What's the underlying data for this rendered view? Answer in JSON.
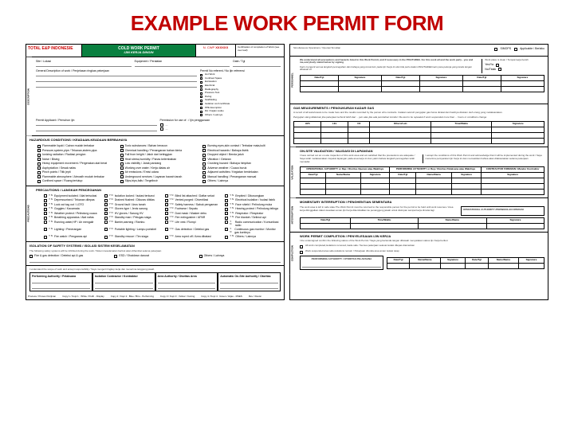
{
  "title": "EXAMPLE WORK PERMIT FORM",
  "colors": {
    "title": "#c00000",
    "green": "#0a8040",
    "logo": "#c00000"
  },
  "left": {
    "logo": "TOTAL E&P INDONESIE",
    "permit_title": "COLD WORK PERMIT",
    "permit_sub": "IJIN KERJA DINGIN",
    "permit_no_lbl": "N. CWP",
    "permit_no": "XXXXXX",
    "cert": "Certification of completion of Work (see over leaf)",
    "desc": {
      "label": "DESCRIPTION",
      "fields": [
        "Site / Lokasi",
        "Equipment / Peralatan",
        "Date / Tgl",
        "General Description of work / Penjelasan ringkas pekerjaan",
        "Permit Applicant / Pemohon ijin"
      ],
      "right_fields": [
        "Permit No referent / No ijin referensi",
        "Drawing / Gambar"
      ],
      "permits": [
        "Hot Work",
        "Confined Space",
        "Excavation",
        "Electrical",
        "Radiography",
        "Pressure Test",
        "Diving",
        "Scaffolding",
        "Isolation conf certificate",
        "PPE Exemption",
        "RA / Kajian resiko",
        "Others / Lainnya"
      ],
      "remote": "Permission for use of : / Ijin penggunaan"
    },
    "hazards": {
      "title": "HAZARDOUS CONDITIONS / KEADAAN-KEADAAN BERBAHAYA",
      "items": [
        "Flammable liquid / Cairan mudah terbakar",
        "Toxic substances / Bahan beracun",
        "Burning eyes,skin contact / Terbakar mata,kulit",
        "Pressure,system,pipe / Tekanan,sistem,pipa",
        "Chemical handling / Penanganan bahan kimia",
        "Electrical hazards / Bahaya listrik",
        "Ionizing radiation / Radiasi pengion",
        "Fall from height / Jatuh dari ketinggian",
        "Dropped object / Benda jatuh",
        "Noise / Bising",
        "Heat stress,humidity / Panas kelembaban",
        "Vibration / Getaran",
        "Heavy equipment movement / Pergerakan alat berat",
        "Low visibility / Jarak pandang",
        "Crushing hazard / Bahaya himpitan",
        "Asphyxiation / Sesak nafas",
        "Working over water / Kerja diatas air",
        "Adverse weather / Cuaca buruk",
        "Pinch points / Titik jepit",
        "Air emissions / Emisi udara",
        "Adjacent activities / Kegiatan berdekatan",
        "Flammable atmosphere / Atmosfir mudah terbakar",
        "Underground services / Layanan bawah tanah",
        "Manual handling / Penanganan manual",
        "Confined space / Ruang tertutup",
        "Slips,trips,falls / Tergelincir",
        "Others / Lainnya"
      ]
    },
    "precautions": {
      "title": "PRECAUTIONS / LANGKAH PENCEGAHAN",
      "items": [
        "Equipment isolated / Alat terisolasi",
        "Isolation locked / Isolasi terkunci",
        "Blind list attached / Daftar sekat",
        "Emptied / Dikosongkan",
        "Depressurised / Tekanan dilepas",
        "Drained flushed / Dikuras dibilas",
        "Vented,purged / Diventilasi",
        "Electrical isolation / Isolasi listrik",
        "Lock out tag out / LOTO",
        "Ground fault / Arus tanah",
        "Safety harness / Sabuk pengaman",
        "Face shield / Pelindung muka",
        "Goggles / Kacamata",
        "Gloves type / Jenis sarung",
        "Footwear / Sepatu",
        "Hearing protect / Pelindung telinga",
        "Weather protect / Pelindung cuaca",
        "HV gloves / Sarung HV",
        "Dust mask / Masker debu",
        "Respirator / Respirator",
        "Breathing apparatus / Alat nafas",
        "Standby man / Petugas siaga",
        "Fire extinguisher / APAR",
        "Fire blanket / Selimut api",
        "Running water,HP / Air mengalir",
        "Barrier,warning / Rambu",
        "Life vest / Rompi",
        "Radio communication / Komunikasi radio",
        "Lighting / Penerangan",
        "Portable lighting / Lampu portabel",
        "Gas detection / Deteksi gas",
        "Continuous gas monitor / Monitor gas kontinyu",
        "Fire watch / Pengawas api",
        "Standby rescue / Tim siaga",
        "Area roped off / Area dibatasi",
        "Others / Lainnya"
      ]
    },
    "isolation": {
      "title": "ISOLATION OF SAFETY SYSTEMS / ISOLASI SISTEM KESELAMATAN",
      "txt": "The following safety systems will be inhibited during the work / Sistem keselamatan berikut akan dihambat selama pekerjaan",
      "items": [
        "Fire & gas detection / Deteksi api & gas",
        "ESD / Shutdown darurat",
        "Others / Lainnya"
      ]
    },
    "validation": {
      "txt": "I understand the scope of work and accept responsibility / Saya mengerti lingkup kerja dan menerima tanggung jawab",
      "cols": [
        "Performing Authority / Pelaksana",
        "Isolation Contractor / Kontraktor",
        "Area Authority / Otoritas Area",
        "Automatic On-Site Authority / Otoritas"
      ],
      "rows": [
        "Name/Nama",
        "Signature",
        "Date/Time"
      ]
    },
    "footer": [
      "Process / Proses Perijinan",
      "Copy 1 / Kopi 1 : White / Putih - Display",
      "Copy 2 / Kopi 2 : Blue / Biru - Performing",
      "Copy 3 / Kopi 3 : Yellow / Kuning",
      "Copy 4 / Kopi 4 : Green / Hijau - RSES",
      "Rev / Revisi"
    ]
  },
  "right": {
    "top_boxes": [
      "SIMOPS",
      "Applicable / Berlaku"
    ],
    "agree": {
      "title": "We understand all precautions and hazards listed in this Work Permit, and if necessary in the PRA/THREE. For this work all and the work party - you and me,everybody stated below by signing",
      "sub": "Kami mengerti semua langkah pencegahan dan bahaya yang tercantum pada Ijin Kerja ini dan bila perlu dalam PRA/THREE kami para pekerja yang tanda tangan dibawah ini",
      "cols": [
        "Date/Tgl",
        "Signature",
        "Date/Tgl",
        "Signature",
        "Date/Tgl",
        "Signature"
      ],
      "work": "Work place is clean / Tempat kerja bersih"
    },
    "gas": {
      "title": "GAS MEASUREMENTS / PENGUKURAN KADAR GAS",
      "note": "A record of all tests/retests to be made here and the results recorded by the person who conducts. Catatan seluruh pengujian gas harus dicatat dan hasilnya direkam oleh orang yang melaksanakan.",
      "note2": "Pengujian ulang dilakukan jika pekerjaan terhenti lebih dari ... jam atau jika ada perubahan kondisi / Re-test to be repeated if work suspended more than ... hours or conditions change",
      "cols": [
        "H2S",
        "LEL",
        "O2",
        "Others/Lain",
        "Time/Waktu",
        "Signature"
      ]
    },
    "onsite": {
      "title": "ON-SITE VALIDATION / VALIDASI DI LAPANGAN",
      "sub": "I have carried out an on-site inspection of this work area and am satisfied that the precautions are adequate / Saya telah melaksanakan inspeksi lapangan pada area kerja ini dan yakin bahwa langkah pencegahan telah memadai",
      "accept": "I accept the conditions of this Work Permit and acknowledge that it will be implemented during the work / Saya menerima persyaratan Ijin Kerja ini dan memastikan bahwa akan dilaksanakan selama pekerjaan",
      "cols": [
        "OPERATIONAL AUTHORITY or Rep / Otoritas Operasi atau Wakilnya",
        "PERFORMING AUTHORITY or Rep / Otoritas Pelaksana atau Wakilnya",
        "CONTRACTOR FOREMAN / Mandor Kontraktor"
      ],
      "rows": [
        "Date/Tgl",
        "Name/Nama",
        "Signature",
        "Date/Tgl",
        "Name/Nama",
        "Signature",
        "Signature"
      ]
    },
    "interrupt": {
      "title": "MOMENTARY INTERRUPTION / PENGHENTIAN SEMENTARA",
      "txt": "The work area is left in safe state.The Work Permit must be returned to the responsible person for the permit to be held until work resumes / Area kerja ditinggalkan dalam keadaan aman.Ijin Kerja dikembalikan ke penanggung jawab untuk disimpan sampai kerja dimulai lagi",
      "cols": [
        "Date/Tgl",
        "Time/Waktu",
        "Name/Nama",
        "Signature"
      ],
      "op": "OPERATIONAL AUTHORITY /PERWAKILAN OPERASI"
    },
    "completion": {
      "title": "WORK PERMIT COMPLETION / PENYELESAIAN IJIN KERJA",
      "txt": "I the undersigned confirm the following status of the Work Permit / Saya yang bertanda tangan dibawah menyatakan status Ijin Kerja berikut",
      "opts": [
        "All work completed,isolations removed,made safe / Semua pekerjaan selesai isolasi dilepas diamankan",
        "Work suspended,area safe,isolations remain / Pekerjaan ditunda area aman isolasi tetap"
      ],
      "box": "PERFORMING AUTHORITY / OTORITAS PELAKSANA",
      "cols": [
        "Date/Tgl",
        "Name/Nama",
        "Signature",
        "Date/Tgl",
        "Name/Nama",
        "Signature"
      ]
    }
  }
}
